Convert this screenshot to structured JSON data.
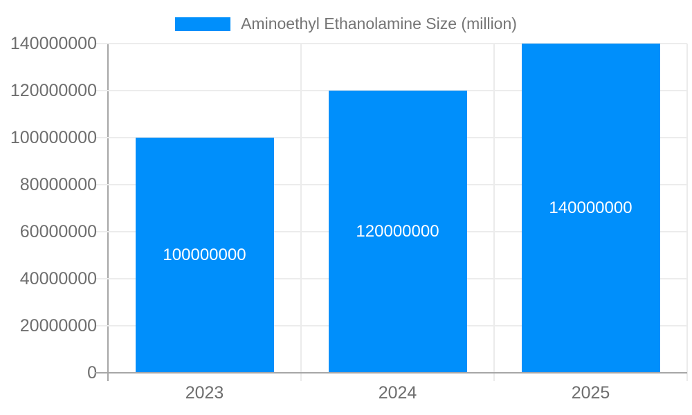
{
  "chart_data": {
    "type": "bar",
    "title": "Aminoethyl Ethanolamine Size (million)",
    "categories": [
      "2023",
      "2024",
      "2025"
    ],
    "series": [
      {
        "name": "Aminoethyl Ethanolamine Size (million)",
        "values": [
          100000000,
          120000000,
          140000000
        ]
      }
    ],
    "data_labels": [
      "100000000",
      "120000000",
      "140000000"
    ],
    "yticks": [
      0,
      20000000,
      40000000,
      60000000,
      80000000,
      100000000,
      120000000,
      140000000
    ],
    "ytick_labels": [
      "0",
      "20000000",
      "40000000",
      "60000000",
      "80000000",
      "100000000",
      "120000000",
      "140000000"
    ],
    "ylim": [
      0,
      140000000
    ],
    "xlabel": "",
    "ylabel": "",
    "grid": true,
    "legend_position": "top",
    "bar_color": "#008FFB",
    "data_label_color": "#FFFFFF"
  },
  "colors": {
    "background": "#FFFFFF",
    "bar": "#008FFB",
    "axis_line": "#A6A6A6",
    "gridline": "#ECECEC",
    "axis_label_text": "#6E6E6E",
    "legend_text": "#757575",
    "data_label_text": "#FFFFFF"
  }
}
